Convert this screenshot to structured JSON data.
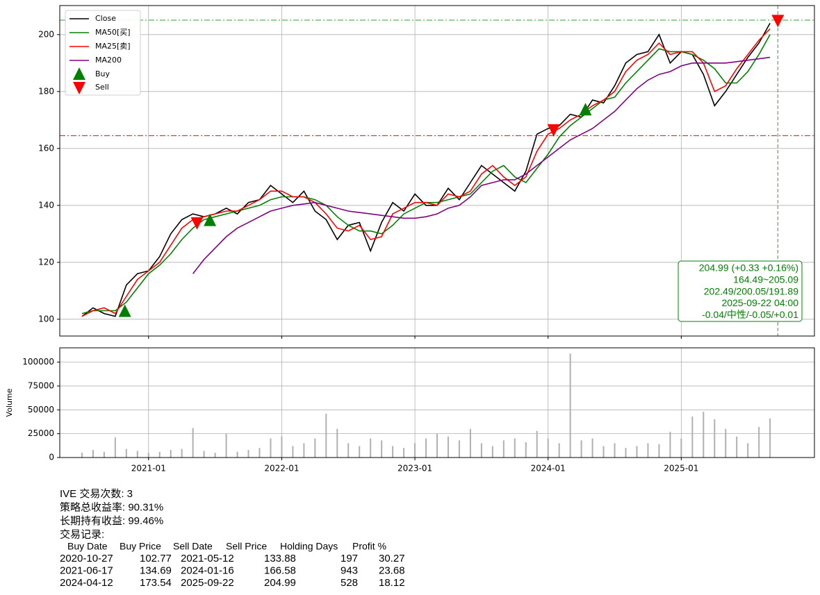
{
  "chart_data": [
    {
      "type": "line",
      "x": [
        "2020-07",
        "2020-08",
        "2020-09",
        "2020-10",
        "2020-11",
        "2020-12",
        "2021-01",
        "2021-02",
        "2021-03",
        "2021-04",
        "2021-05",
        "2021-06",
        "2021-07",
        "2021-08",
        "2021-09",
        "2021-10",
        "2021-11",
        "2021-12",
        "2022-01",
        "2022-02",
        "2022-03",
        "2022-04",
        "2022-05",
        "2022-06",
        "2022-07",
        "2022-08",
        "2022-09",
        "2022-10",
        "2022-11",
        "2022-12",
        "2023-01",
        "2023-02",
        "2023-03",
        "2023-04",
        "2023-05",
        "2023-06",
        "2023-07",
        "2023-08",
        "2023-09",
        "2023-10",
        "2023-11",
        "2023-12",
        "2024-01",
        "2024-02",
        "2024-03",
        "2024-04",
        "2024-05",
        "2024-06",
        "2024-07",
        "2024-08",
        "2024-09",
        "2024-10",
        "2024-11",
        "2024-12",
        "2025-01",
        "2025-02",
        "2025-03",
        "2025-04",
        "2025-05",
        "2025-06",
        "2025-07",
        "2025-08",
        "2025-09"
      ],
      "series": [
        {
          "name": "Close",
          "color": "#000000",
          "values": [
            101,
            104,
            102,
            101,
            112,
            116,
            117,
            122,
            130,
            135,
            137,
            136,
            137,
            139,
            137,
            141,
            142,
            147,
            144,
            141,
            145,
            138,
            135,
            128,
            133,
            134,
            124,
            134,
            141,
            138,
            144,
            140,
            140,
            146,
            142,
            148,
            154,
            151,
            148,
            145,
            152,
            165,
            167,
            168,
            172,
            171,
            177,
            176,
            182,
            190,
            193,
            194,
            200,
            190,
            194,
            193,
            186,
            175,
            180,
            186,
            192,
            197,
            204
          ]
        },
        {
          "name": "MA50[买]",
          "color": "#008000",
          "values": [
            102,
            103,
            103,
            103,
            106,
            111,
            116,
            119,
            123,
            128,
            132,
            135,
            136,
            137,
            138,
            139,
            140,
            142,
            143,
            143,
            143,
            142,
            140,
            136,
            133,
            131,
            131,
            130,
            133,
            137,
            139,
            141,
            141,
            142,
            143,
            144,
            148,
            152,
            154,
            150,
            148,
            153,
            158,
            164,
            168,
            171,
            174,
            177,
            178,
            183,
            187,
            191,
            195,
            194,
            194,
            193,
            191,
            188,
            183,
            183,
            187,
            193,
            200
          ]
        },
        {
          "name": "MA25[卖]",
          "color": "#ff0000",
          "values": [
            101,
            103,
            104,
            102,
            108,
            114,
            117,
            120,
            126,
            132,
            135,
            136,
            137,
            138,
            138,
            140,
            142,
            145,
            145,
            143,
            143,
            141,
            137,
            132,
            131,
            133,
            128,
            129,
            137,
            139,
            141,
            141,
            140,
            144,
            143,
            145,
            151,
            154,
            150,
            147,
            150,
            159,
            165,
            167,
            170,
            172,
            175,
            177,
            180,
            187,
            191,
            193,
            197,
            193,
            194,
            194,
            190,
            180,
            182,
            188,
            193,
            198,
            202
          ]
        },
        {
          "name": "MA200",
          "color": "#800080",
          "values": [
            null,
            null,
            null,
            null,
            null,
            null,
            null,
            null,
            null,
            null,
            116,
            121,
            125,
            129,
            132,
            134,
            136,
            138,
            139,
            140,
            140.5,
            141,
            140,
            139,
            138,
            137.5,
            137,
            136.5,
            136,
            135.5,
            135.5,
            136,
            137,
            139,
            140,
            143,
            147,
            148,
            149,
            149,
            151,
            154,
            157,
            160,
            163,
            165,
            167,
            170,
            173,
            177,
            181,
            184,
            186,
            187,
            189,
            190,
            190,
            190,
            190,
            190.5,
            191,
            191.5,
            192
          ]
        }
      ],
      "markers": [
        {
          "name": "Buy",
          "color": "#008000"
        },
        {
          "name": "Sell",
          "color": "#ff0000"
        }
      ],
      "hlines": [
        {
          "value": 205.09,
          "color": "#2ca02c"
        },
        {
          "value": 164.49,
          "color": "#ff0000"
        }
      ],
      "vline": {
        "x": "2025-09-22",
        "color": "#2ca02c"
      },
      "annotation": [
        "204.99 (+0.33 +0.16%)",
        "164.49~205.09",
        "202.49/200.05/191.89",
        "2025-09-22 04:00",
        "-0.04/中性/-0.05/+0.01"
      ],
      "xlim": [
        "2020-05",
        "2026-01"
      ],
      "ylim": [
        94.1,
        210.2
      ],
      "yticks": [
        100,
        120,
        140,
        160,
        180,
        200
      ],
      "grid": true,
      "legend": "upper left"
    },
    {
      "type": "bar",
      "ylabel": "Volume",
      "color": "#b0b0b0",
      "values": [
        5000,
        8000,
        6000,
        21000,
        9000,
        7000,
        5000,
        6000,
        8000,
        9000,
        31000,
        7000,
        5000,
        25000,
        6000,
        8000,
        10000,
        20000,
        22000,
        12000,
        15000,
        20000,
        46000,
        30000,
        15000,
        12000,
        20000,
        18000,
        12000,
        10000,
        15000,
        20000,
        25000,
        22000,
        18000,
        30000,
        15000,
        12000,
        18000,
        20000,
        16000,
        28000,
        20000,
        15000,
        109000,
        18000,
        20000,
        12000,
        15000,
        10000,
        12000,
        15000,
        14000,
        27000,
        20000,
        43000,
        48000,
        40000,
        30000,
        22000,
        15000,
        32000,
        41000
      ],
      "xlim": [
        "2020-05",
        "2026-01"
      ],
      "xticks": [
        "2021-01",
        "2022-01",
        "2023-01",
        "2024-01",
        "2025-01"
      ],
      "ylim": [
        0,
        115000
      ],
      "yticks": [
        0,
        25000,
        50000,
        75000,
        100000
      ],
      "grid": true
    }
  ],
  "report": {
    "lines": [
      "IVE 交易次数: 3",
      "策略总收益率: 90.31%",
      "长期持有收益: 99.46%",
      "交易记录:"
    ],
    "trades": {
      "columns": [
        "Buy Date",
        "Buy Price",
        "Sell Date",
        "Sell Price",
        "Holding Days",
        "Profit %"
      ],
      "rows": [
        [
          "2020-10-27",
          102.77,
          "2021-05-12",
          133.88,
          197,
          30.27
        ],
        [
          "2021-06-17",
          134.69,
          "2024-01-16",
          166.58,
          943,
          23.68
        ],
        [
          "2024-04-12",
          173.54,
          "2025-09-22",
          204.99,
          528,
          18.12
        ]
      ]
    }
  }
}
